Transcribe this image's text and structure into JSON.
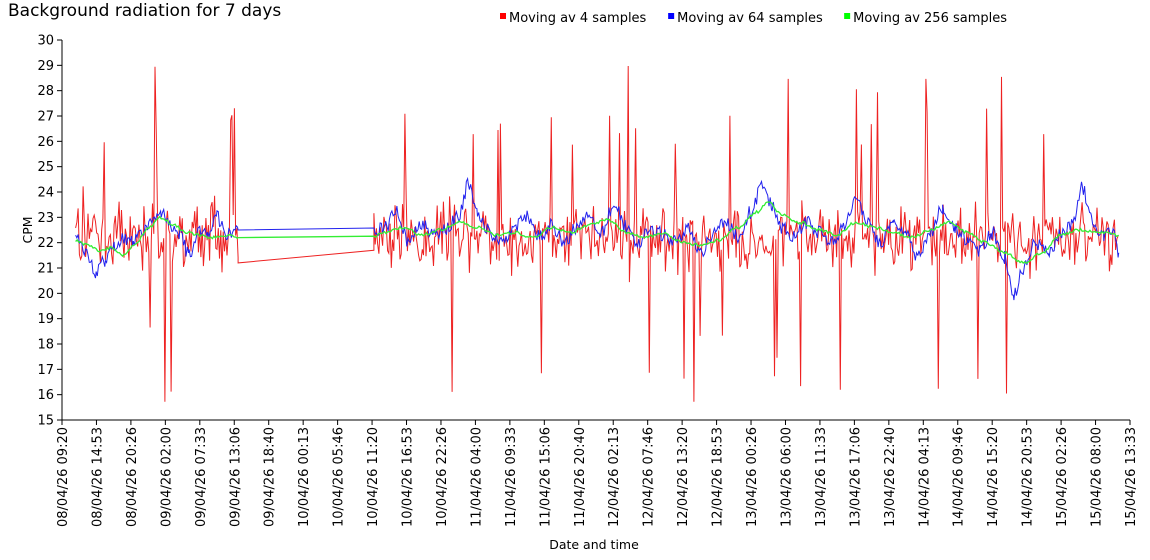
{
  "chart_data": {
    "type": "line",
    "title": "Background radiation for 7 days",
    "xlabel": "Date and time",
    "ylabel": "CPM",
    "ylim": [
      15,
      30
    ],
    "y_ticks": [
      15,
      16,
      17,
      18,
      19,
      20,
      21,
      22,
      23,
      24,
      25,
      26,
      27,
      28,
      29,
      30
    ],
    "x_ticks": [
      "08/04/26 09:20",
      "08/04/26 14:53",
      "08/04/26 20:26",
      "09/04/26 02:00",
      "09/04/26 07:33",
      "09/04/26 13:06",
      "09/04/26 18:40",
      "10/04/26 00:13",
      "10/04/26 05:46",
      "10/04/26 11:20",
      "10/04/26 16:53",
      "10/04/26 22:26",
      "11/04/26 04:00",
      "11/04/26 09:33",
      "11/04/26 15:06",
      "11/04/26 20:40",
      "12/04/26 02:13",
      "12/04/26 07:46",
      "12/04/26 13:20",
      "12/04/26 18:53",
      "13/04/26 00:26",
      "13/04/26 06:00",
      "13/04/26 11:33",
      "13/04/26 17:06",
      "13/04/26 22:40",
      "14/04/26 04:13",
      "14/04/26 09:46",
      "14/04/26 15:20",
      "14/04/26 20:53",
      "15/04/26 02:26",
      "15/04/26 08:00",
      "15/04/26 13:33"
    ],
    "x_hours_note": "x values are hours since 08/04/26 09:20; tick spacing 5.5556 h (31 intervals = 172.22 h)",
    "x_range": [
      0,
      172.22
    ],
    "gap": {
      "from_hours": 28.4,
      "to_hours": 50.3
    },
    "legend_position": "top-center",
    "series": [
      {
        "name": "Moving av 4 samples",
        "color": "#ff0000",
        "line_color": "#ee2222",
        "sample_interval_hours": 0.2,
        "segments": [
          {
            "start": 2.2,
            "end": 28.4
          },
          {
            "start": 50.3,
            "end": 170.4
          }
        ],
        "mean": 22.2,
        "range": [
          15.5,
          29.5
        ],
        "gap_bridge": [
          [
            28.4,
            21.2
          ],
          [
            50.3,
            21.7
          ]
        ]
      },
      {
        "name": "Moving av 64 samples",
        "color": "#0000ff",
        "line_color": "#2222ee",
        "keypoints": [
          [
            2.2,
            22.2
          ],
          [
            4,
            21.5
          ],
          [
            5.5,
            20.8
          ],
          [
            7,
            21.3
          ],
          [
            8.5,
            21.9
          ],
          [
            10,
            22.2
          ],
          [
            11.5,
            22.0
          ],
          [
            13,
            22.5
          ],
          [
            14.5,
            22.9
          ],
          [
            16,
            23.2
          ],
          [
            17.5,
            22.6
          ],
          [
            19,
            22.3
          ],
          [
            20.5,
            21.5
          ],
          [
            22,
            22.5
          ],
          [
            23.5,
            22.2
          ],
          [
            25,
            23.0
          ],
          [
            26.5,
            22.3
          ],
          [
            28.4,
            22.5
          ],
          [
            50.3,
            22.4
          ],
          [
            52,
            22.6
          ],
          [
            54,
            23.2
          ],
          [
            56,
            22.0
          ],
          [
            58,
            22.8
          ],
          [
            60,
            22.3
          ],
          [
            62,
            22.6
          ],
          [
            64,
            23.0
          ],
          [
            65.5,
            24.3
          ],
          [
            67,
            23.2
          ],
          [
            69,
            22.4
          ],
          [
            71,
            22.0
          ],
          [
            73,
            22.6
          ],
          [
            75,
            23.1
          ],
          [
            77,
            22.2
          ],
          [
            79,
            22.7
          ],
          [
            81,
            22.0
          ],
          [
            83,
            22.6
          ],
          [
            85,
            23.0
          ],
          [
            87,
            22.4
          ],
          [
            89,
            23.5
          ],
          [
            91,
            22.6
          ],
          [
            93,
            22.0
          ],
          [
            95,
            22.6
          ],
          [
            97,
            22.3
          ],
          [
            99,
            22.0
          ],
          [
            101,
            22.6
          ],
          [
            103,
            21.6
          ],
          [
            105,
            22.3
          ],
          [
            107,
            22.9
          ],
          [
            109,
            22.2
          ],
          [
            111,
            23.2
          ],
          [
            113,
            24.3
          ],
          [
            114.5,
            23.5
          ],
          [
            116,
            22.6
          ],
          [
            118,
            22.2
          ],
          [
            120,
            22.8
          ],
          [
            122,
            22.4
          ],
          [
            124,
            22.0
          ],
          [
            126,
            22.6
          ],
          [
            128,
            23.8
          ],
          [
            130,
            22.8
          ],
          [
            132,
            22.0
          ],
          [
            134,
            22.8
          ],
          [
            136,
            22.4
          ],
          [
            138,
            21.4
          ],
          [
            140,
            22.3
          ],
          [
            142,
            23.4
          ],
          [
            144,
            22.6
          ],
          [
            146,
            22.1
          ],
          [
            148,
            21.7
          ],
          [
            150,
            22.4
          ],
          [
            152,
            21.4
          ],
          [
            153.5,
            19.9
          ],
          [
            155,
            21.0
          ],
          [
            157,
            22.0
          ],
          [
            159,
            21.6
          ],
          [
            161,
            22.3
          ],
          [
            163,
            22.8
          ],
          [
            164.5,
            24.2
          ],
          [
            166,
            22.9
          ],
          [
            168,
            22.2
          ],
          [
            169.5,
            22.5
          ],
          [
            170.4,
            21.6
          ]
        ]
      },
      {
        "name": "Moving av 256 samples",
        "color": "#00ff00",
        "line_color": "#33ee33",
        "keypoints": [
          [
            2.2,
            22.1
          ],
          [
            4,
            21.9
          ],
          [
            6,
            21.7
          ],
          [
            8,
            21.8
          ],
          [
            10,
            21.5
          ],
          [
            12,
            22.0
          ],
          [
            14,
            22.6
          ],
          [
            16,
            23.0
          ],
          [
            18,
            22.7
          ],
          [
            20,
            22.4
          ],
          [
            22,
            22.3
          ],
          [
            24,
            22.2
          ],
          [
            26,
            22.3
          ],
          [
            28.4,
            22.2
          ],
          [
            50.3,
            22.25
          ],
          [
            52,
            22.4
          ],
          [
            55,
            22.6
          ],
          [
            58,
            22.3
          ],
          [
            61,
            22.5
          ],
          [
            64,
            22.8
          ],
          [
            67,
            22.6
          ],
          [
            70,
            22.3
          ],
          [
            73,
            22.4
          ],
          [
            76,
            22.2
          ],
          [
            79,
            22.6
          ],
          [
            82,
            22.4
          ],
          [
            85,
            22.7
          ],
          [
            88,
            22.9
          ],
          [
            91,
            22.4
          ],
          [
            94,
            22.2
          ],
          [
            97,
            22.4
          ],
          [
            100,
            22.0
          ],
          [
            103,
            21.9
          ],
          [
            106,
            22.1
          ],
          [
            109,
            22.6
          ],
          [
            112,
            23.2
          ],
          [
            114,
            23.6
          ],
          [
            116,
            23.1
          ],
          [
            119,
            22.8
          ],
          [
            122,
            22.5
          ],
          [
            125,
            22.3
          ],
          [
            128,
            22.8
          ],
          [
            131,
            22.6
          ],
          [
            134,
            22.4
          ],
          [
            137,
            22.2
          ],
          [
            140,
            22.5
          ],
          [
            143,
            22.8
          ],
          [
            146,
            22.4
          ],
          [
            149,
            22.0
          ],
          [
            152,
            21.6
          ],
          [
            155,
            21.2
          ],
          [
            158,
            21.6
          ],
          [
            161,
            22.3
          ],
          [
            164,
            22.5
          ],
          [
            167,
            22.4
          ],
          [
            170.4,
            22.3
          ]
        ]
      }
    ]
  }
}
